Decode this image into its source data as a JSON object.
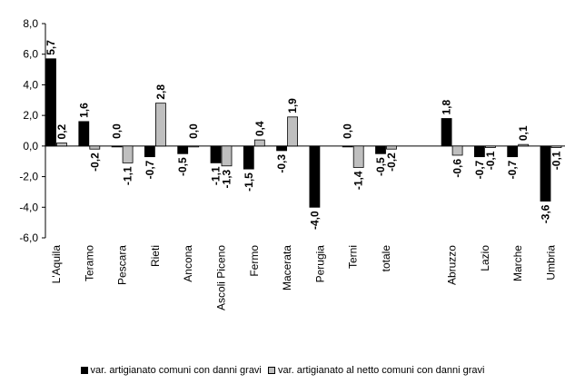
{
  "chart_data": {
    "type": "bar",
    "categories": [
      "L'Aquila",
      "Teramo",
      "Pescara",
      "Rieti",
      "Ancona",
      "Ascoli Piceno",
      "Fermo",
      "Macerata",
      "Perugia",
      "Terni",
      "totale",
      "",
      "Abruzzo",
      "Lazio",
      "Marche",
      "Umbria"
    ],
    "series": [
      {
        "name": "var. artigianato comuni con danni gravi",
        "color": "#000000",
        "values": [
          5.7,
          1.6,
          0.0,
          -0.7,
          -0.5,
          -1.1,
          -1.5,
          -0.3,
          -4.0,
          0.0,
          -0.5,
          null,
          1.8,
          -0.7,
          -0.7,
          -3.6
        ],
        "labels": [
          "5,7",
          "1,6",
          "0,0",
          "-0,7",
          "-0,5",
          "-1,1",
          "-1,5",
          "-0,3",
          "-4,0",
          "0,0",
          "-0,5",
          "",
          "1,8",
          "-0,7",
          "-0,7",
          "-3,6"
        ]
      },
      {
        "name": "var. artigianato al netto comuni con danni gravi",
        "color": "#bfbfbf",
        "values": [
          0.2,
          -0.2,
          -1.1,
          2.8,
          0.0,
          -1.3,
          0.4,
          1.9,
          null,
          -1.4,
          -0.2,
          null,
          -0.6,
          -0.1,
          0.1,
          -0.1
        ],
        "labels": [
          "0,2",
          "-0,2",
          "-1,1",
          "2,8",
          "0,0",
          "-1,3",
          "0,4",
          "1,9",
          "",
          "-1,4",
          "-0,2",
          "",
          "-0,6",
          "-0,1",
          "0,1",
          "-0,1"
        ]
      }
    ],
    "ylim": [
      -6,
      8
    ],
    "yticks": [
      8,
      6,
      4,
      2,
      0,
      -2,
      -4,
      -6
    ],
    "yticklabels": [
      "8,0",
      "6,0",
      "4,0",
      "2,0",
      "0,0",
      "-2,0",
      "-4,0",
      "-6,0"
    ],
    "legend_position": "bottom",
    "grid": false
  }
}
